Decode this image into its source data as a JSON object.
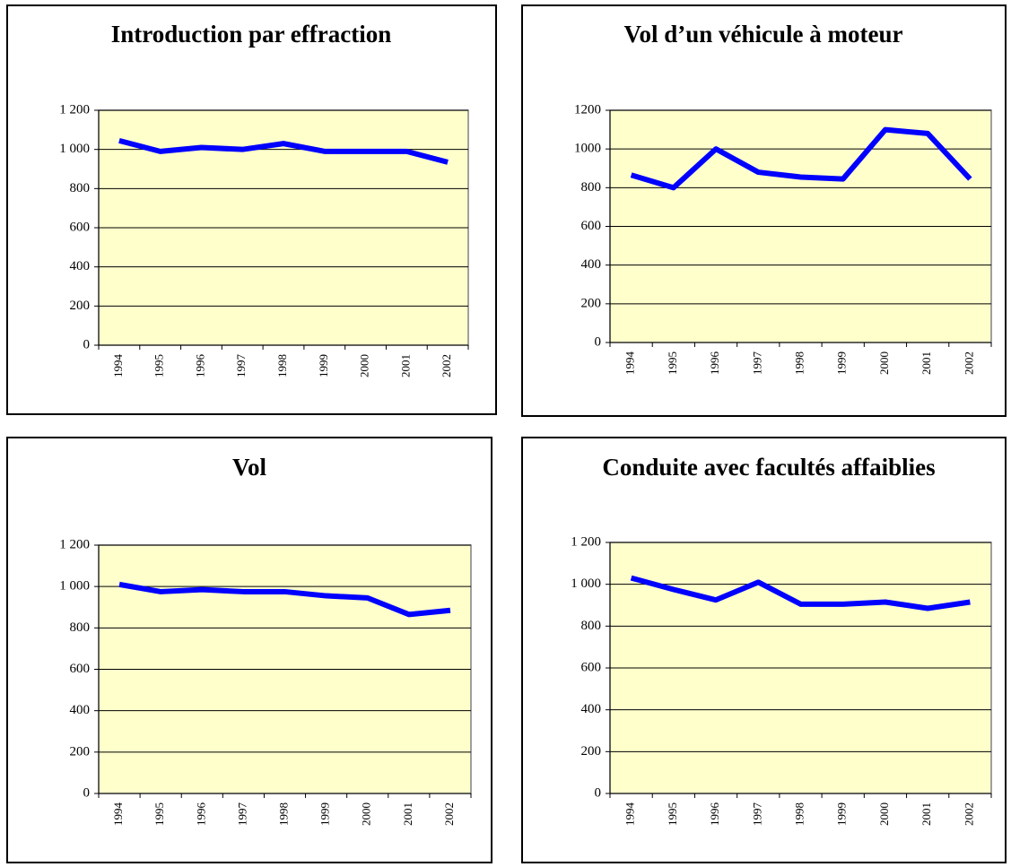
{
  "chart_data": [
    {
      "type": "line",
      "title": "Introduction par effraction",
      "categories": [
        "1994",
        "1995",
        "1996",
        "1997",
        "1998",
        "1999",
        "2000",
        "2001",
        "2002"
      ],
      "series": [
        {
          "name": "Introduction par effraction",
          "color": "#0000ff",
          "values": [
            1045,
            990,
            1010,
            1000,
            1030,
            990,
            990,
            990,
            935
          ]
        }
      ],
      "ylim": [
        0,
        1200
      ],
      "yticks": [
        0,
        200,
        400,
        600,
        800,
        {
          "value": 1000,
          "label": "1 000"
        },
        {
          "value": 1200,
          "label": "1 200"
        }
      ],
      "grid": true
    },
    {
      "type": "line",
      "title": "Vol d’un véhicule à moteur",
      "categories": [
        "1994",
        "1995",
        "1996",
        "1997",
        "1998",
        "1999",
        "2000",
        "2001",
        "2002"
      ],
      "series": [
        {
          "name": "Vol d’un véhicule à moteur",
          "color": "#0000ff",
          "values": [
            865,
            800,
            1000,
            880,
            855,
            845,
            1100,
            1080,
            845
          ]
        }
      ],
      "ylim": [
        0,
        1200
      ],
      "yticks": [
        0,
        200,
        400,
        600,
        800,
        1000,
        1200
      ],
      "grid": true
    },
    {
      "type": "line",
      "title": "Vol",
      "categories": [
        "1994",
        "1995",
        "1996",
        "1997",
        "1998",
        "1999",
        "2000",
        "2001",
        "2002"
      ],
      "series": [
        {
          "name": "Vol",
          "color": "#0000ff",
          "values": [
            1010,
            975,
            985,
            975,
            975,
            955,
            945,
            865,
            885
          ]
        }
      ],
      "ylim": [
        0,
        1200
      ],
      "yticks": [
        0,
        200,
        400,
        600,
        800,
        {
          "value": 1000,
          "label": "1 000"
        },
        {
          "value": 1200,
          "label": "1 200"
        }
      ],
      "grid": true
    },
    {
      "type": "line",
      "title": "Conduite avec facultés affaiblies",
      "categories": [
        "1994",
        "1995",
        "1996",
        "1997",
        "1998",
        "1999",
        "2000",
        "2001",
        "2002"
      ],
      "series": [
        {
          "name": "Conduite avec facultés affaiblies",
          "color": "#0000ff",
          "values": [
            1030,
            975,
            925,
            1010,
            905,
            905,
            915,
            885,
            915
          ]
        }
      ],
      "ylim": [
        0,
        1200
      ],
      "yticks": [
        0,
        200,
        400,
        600,
        800,
        {
          "value": 1000,
          "label": "1 000"
        },
        {
          "value": 1200,
          "label": "1 200"
        }
      ],
      "grid": true
    }
  ]
}
